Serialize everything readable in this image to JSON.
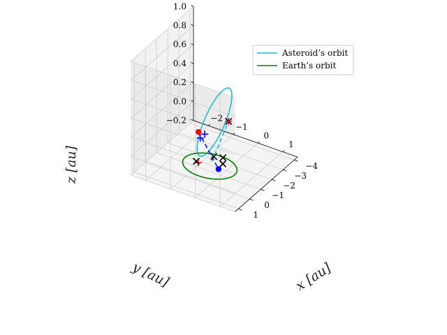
{
  "chart_data": {
    "type": "line3d",
    "title": "",
    "xlabel": "x [au]",
    "ylabel": "y [au]",
    "zlabel": "z [au]",
    "xticks": [
      "−2",
      "−1",
      "0",
      "1"
    ],
    "yticks": [
      "1",
      "0",
      "−1",
      "−2",
      "−3",
      "−4"
    ],
    "zticks": [
      "−0.2",
      "0.0",
      "0.2",
      "0.4",
      "0.6",
      "0.8",
      "1.0"
    ],
    "xlim": [
      -2.6,
      1.6
    ],
    "ylim": [
      -4.3,
      1.3
    ],
    "zlim": [
      -0.2,
      1.0
    ],
    "grid": true,
    "legend_position": "top-right",
    "series": [
      {
        "name": "Asteroid’s orbit",
        "color": "#17becf",
        "style": "solid",
        "kind": "ellipse",
        "center": [
          -0.22,
          -0.9,
          0.35
        ],
        "semi_major": [
          1.2,
          1.45,
          0.62
        ],
        "semi_minor": [
          0.32,
          -0.27,
          0
        ]
      },
      {
        "name": "Earth’s orbit",
        "color": "#008000",
        "style": "solid",
        "kind": "circle",
        "center": [
          0,
          0,
          0
        ],
        "radius": 1
      }
    ],
    "segments": [
      {
        "color": "#17becf",
        "style": "dashed",
        "from": [
          -0.1,
          -0.4,
          0.0
        ],
        "to": [
          1.0,
          0.55,
          0.62
        ]
      },
      {
        "color": "#0000ff",
        "style": "dashed",
        "from": [
          -1.45,
          -2.2,
          0.0
        ],
        "to": [
          0.35,
          0.0,
          0.0
        ]
      }
    ],
    "points": [
      {
        "marker": "o",
        "color": "#ff0000",
        "xyz": [
          -1.45,
          -2.2,
          0.0
        ]
      },
      {
        "marker": "o",
        "color": "#0000ff",
        "xyz": [
          0.35,
          0.0,
          0.0
        ]
      },
      {
        "marker": "+",
        "color": "#ff0000",
        "xyz": [
          -0.45,
          0.05,
          0.0
        ]
      },
      {
        "marker": "+",
        "color": "#0000ff",
        "xyz": [
          -1.2,
          -1.8,
          0.0
        ]
      },
      {
        "marker": "+",
        "color": "#0000ff",
        "xyz": [
          -1.2,
          -2.2,
          0.0
        ]
      },
      {
        "marker": "x",
        "color": "#000000",
        "xyz": [
          -0.55,
          0.0,
          0.0
        ]
      },
      {
        "marker": "x",
        "color": "#000000",
        "xyz": [
          -0.2,
          -0.8,
          0.0
        ]
      },
      {
        "marker": "x",
        "color": "#000000",
        "xyz": [
          0.1,
          -0.95,
          0.0
        ]
      },
      {
        "marker": "x",
        "color": "#000000",
        "xyz": [
          0.3,
          -0.5,
          0.0
        ]
      },
      {
        "marker": "x",
        "color": "#000000",
        "xyz": [
          1.0,
          0.55,
          0.62
        ]
      },
      {
        "marker": "+",
        "color": "#ff0000",
        "xyz": [
          1.0,
          0.55,
          0.62
        ]
      }
    ]
  }
}
